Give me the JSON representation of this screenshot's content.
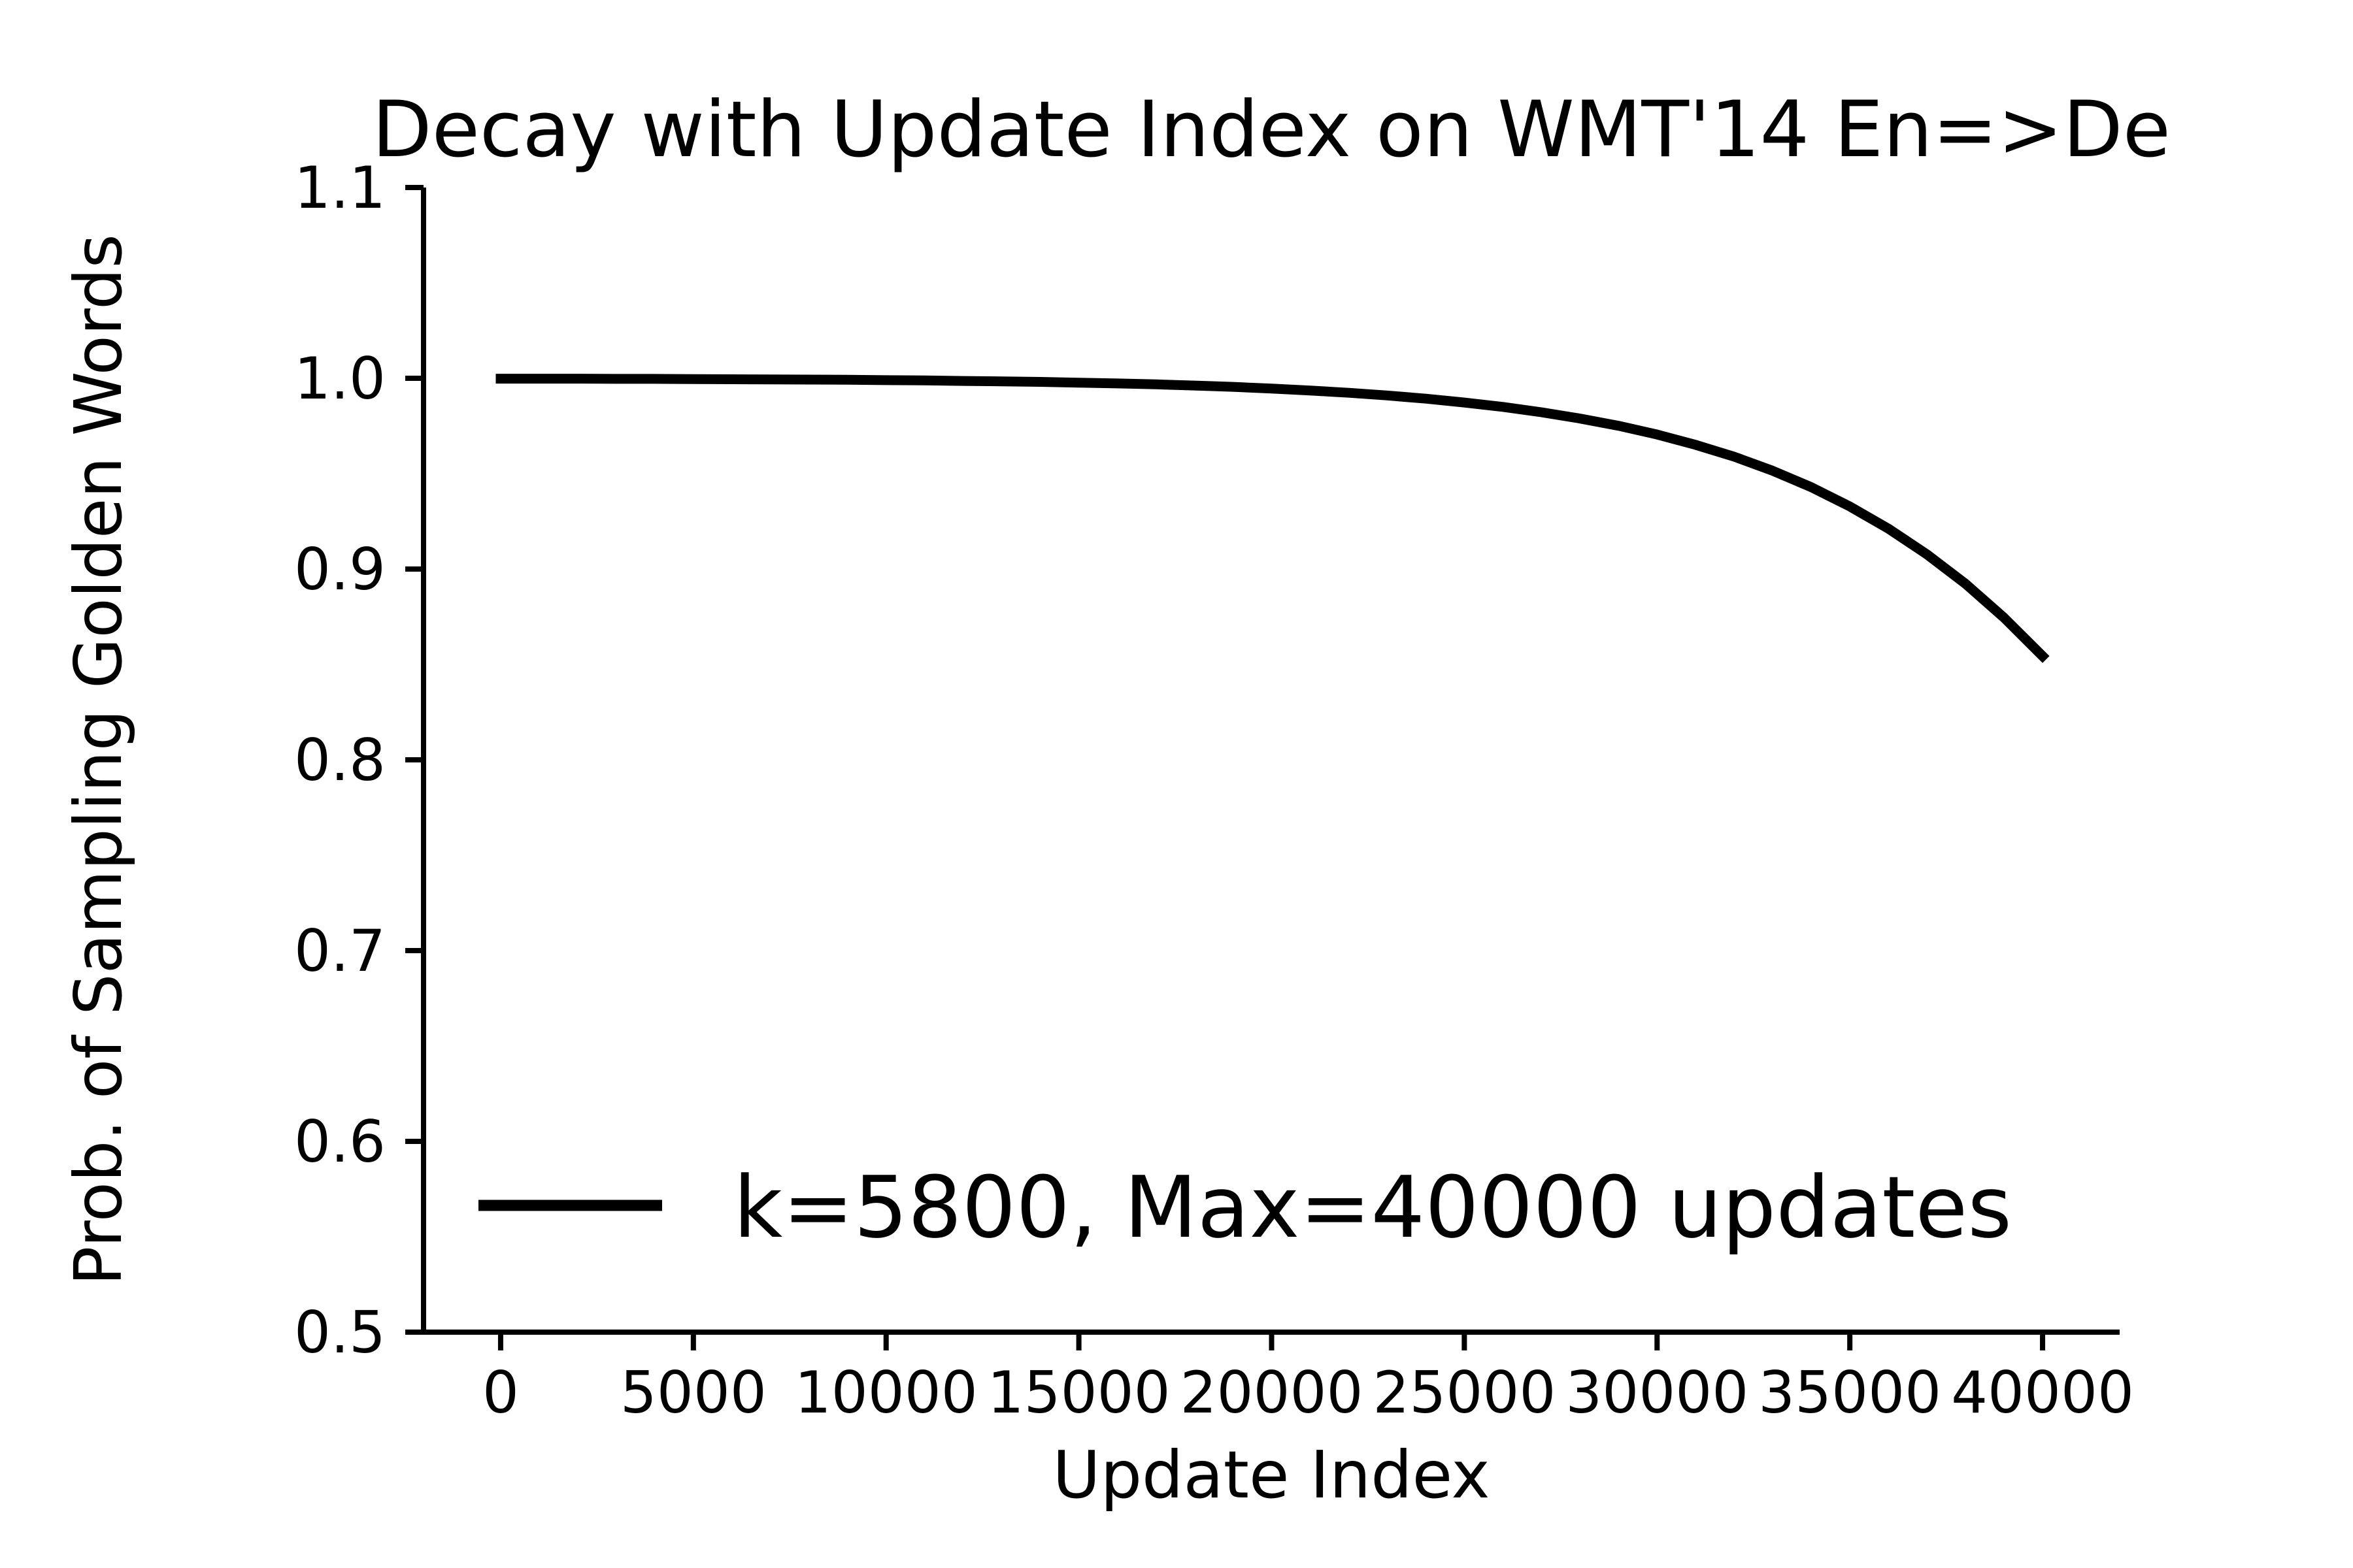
{
  "page": {
    "background": "#ffffff",
    "text_color": "#000000"
  },
  "chart_data": {
    "type": "line",
    "title": "Decay with Update Index on WMT'14 En=>De",
    "xlabel": "Update Index",
    "ylabel": "Prob. of Sampling Golden Words",
    "xlim": [
      -2000,
      42000
    ],
    "ylim": [
      0.5,
      1.1
    ],
    "xticks": [
      0,
      5000,
      10000,
      15000,
      20000,
      25000,
      30000,
      35000,
      40000
    ],
    "xtick_labels": [
      "0",
      "5000",
      "10000",
      "15000",
      "20000",
      "25000",
      "30000",
      "35000",
      "40000"
    ],
    "yticks": [
      0.5,
      0.6,
      0.7,
      0.8,
      0.9,
      1.0,
      1.1
    ],
    "ytick_labels": [
      "0.5",
      "0.6",
      "0.7",
      "0.8",
      "0.9",
      "1.0",
      "1.1"
    ],
    "grid": false,
    "spines": [
      "left",
      "bottom"
    ],
    "line_color": "#000000",
    "axis_color": "#000000",
    "legend_position": "lower left",
    "series": [
      {
        "name": "k=5800, Max=40000 updates",
        "x": [
          0,
          1000,
          2000,
          3000,
          4000,
          5000,
          6000,
          7000,
          8000,
          9000,
          10000,
          11000,
          12000,
          13000,
          14000,
          15000,
          16000,
          17000,
          18000,
          19000,
          20000,
          21000,
          22000,
          23000,
          24000,
          25000,
          26000,
          27000,
          28000,
          29000,
          30000,
          31000,
          32000,
          33000,
          34000,
          35000,
          36000,
          37000,
          38000,
          39000,
          40000
        ],
        "y": [
          0.9998,
          0.9998,
          0.9998,
          0.9997,
          0.9997,
          0.9996,
          0.9995,
          0.9994,
          0.9993,
          0.9992,
          0.999,
          0.9989,
          0.9986,
          0.9984,
          0.9981,
          0.9977,
          0.9973,
          0.9968,
          0.9962,
          0.9955,
          0.9946,
          0.9936,
          0.9924,
          0.991,
          0.9893,
          0.9873,
          0.985,
          0.9822,
          0.9789,
          0.9751,
          0.9705,
          0.9651,
          0.9589,
          0.9515,
          0.9429,
          0.9328,
          0.9212,
          0.9077,
          0.8923,
          0.8745,
          0.8544
        ]
      }
    ]
  }
}
